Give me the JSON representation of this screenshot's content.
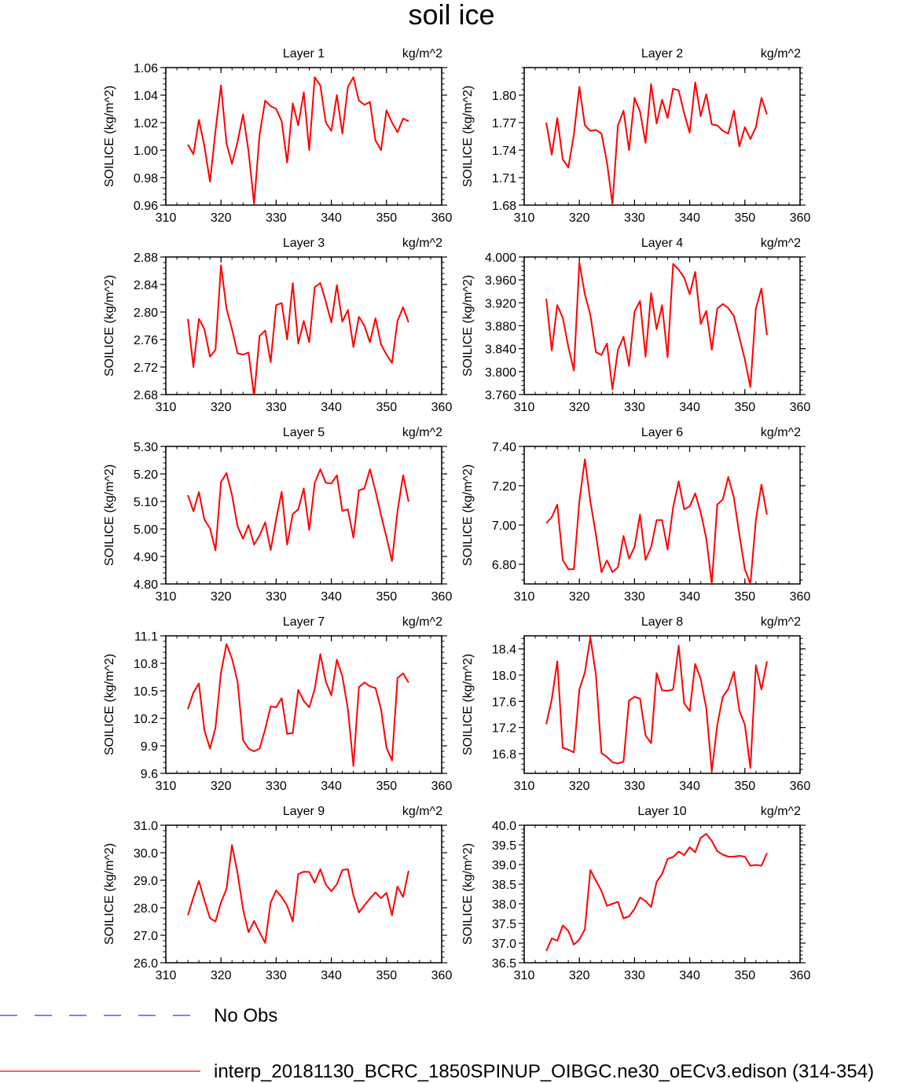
{
  "title": "soil ice",
  "legend": {
    "obs_label": "No Obs",
    "obs_color": "#3333ff",
    "model_label": "interp_20181130_BCRC_1850SPINUP_OIBGC.ne30_oECv3.edison (314-354)",
    "model_color": "#ff0000"
  },
  "chart_data": [
    {
      "type": "line",
      "title": "Layer 1",
      "units": "kg/m^2",
      "ylabel": "SOILICE  (kg/m^2)",
      "xlim": [
        310,
        360
      ],
      "xticks": [
        310,
        320,
        330,
        340,
        350,
        360
      ],
      "ylim": [
        0.96,
        1.06
      ],
      "yticks": [
        "0.96",
        "0.98",
        "1.00",
        "1.02",
        "1.04",
        "1.06"
      ],
      "x": [
        314,
        315,
        316,
        317,
        318,
        319,
        320,
        321,
        322,
        323,
        324,
        325,
        326,
        327,
        328,
        329,
        330,
        331,
        332,
        333,
        334,
        335,
        336,
        337,
        338,
        339,
        340,
        341,
        342,
        343,
        344,
        345,
        346,
        347,
        348,
        349,
        350,
        351,
        352,
        353,
        354
      ],
      "values": [
        1.004,
        0.997,
        1.022,
        1.003,
        0.977,
        1.014,
        1.047,
        1.005,
        0.99,
        1.006,
        1.026,
        0.999,
        0.961,
        1.011,
        1.036,
        1.032,
        1.03,
        1.021,
        0.991,
        1.034,
        1.018,
        1.042,
        1.0,
        1.053,
        1.047,
        1.02,
        1.014,
        1.04,
        1.012,
        1.046,
        1.053,
        1.036,
        1.033,
        1.035,
        1.007,
        1.0,
        1.029,
        1.02,
        1.013,
        1.023,
        1.021
      ]
    },
    {
      "type": "line",
      "title": "Layer 2",
      "units": "kg/m^2",
      "ylabel": "SOILICE  (kg/m^2)",
      "xlim": [
        310,
        360
      ],
      "xticks": [
        310,
        320,
        330,
        340,
        350,
        360
      ],
      "ylim": [
        1.68,
        1.83
      ],
      "yticks": [
        "1.68",
        "1.71",
        "1.74",
        "1.77",
        "1.80"
      ],
      "x": [
        314,
        315,
        316,
        317,
        318,
        319,
        320,
        321,
        322,
        323,
        324,
        325,
        326,
        327,
        328,
        329,
        330,
        331,
        332,
        333,
        334,
        335,
        336,
        337,
        338,
        339,
        340,
        341,
        342,
        343,
        344,
        345,
        346,
        347,
        348,
        349,
        350,
        351,
        352,
        353,
        354
      ],
      "values": [
        1.77,
        1.735,
        1.775,
        1.73,
        1.721,
        1.757,
        1.809,
        1.767,
        1.761,
        1.762,
        1.758,
        1.727,
        1.681,
        1.767,
        1.783,
        1.74,
        1.797,
        1.782,
        1.748,
        1.812,
        1.769,
        1.795,
        1.775,
        1.807,
        1.805,
        1.78,
        1.759,
        1.814,
        1.777,
        1.801,
        1.768,
        1.767,
        1.761,
        1.758,
        1.783,
        1.744,
        1.765,
        1.752,
        1.765,
        1.797,
        1.779
      ]
    },
    {
      "type": "line",
      "title": "Layer 3",
      "units": "kg/m^2",
      "ylabel": "SOILICE  (kg/m^2)",
      "xlim": [
        310,
        360
      ],
      "xticks": [
        310,
        320,
        330,
        340,
        350,
        360
      ],
      "ylim": [
        2.68,
        2.88
      ],
      "yticks": [
        "2.68",
        "2.72",
        "2.76",
        "2.80",
        "2.84",
        "2.88"
      ],
      "x": [
        314,
        315,
        316,
        317,
        318,
        319,
        320,
        321,
        322,
        323,
        324,
        325,
        326,
        327,
        328,
        329,
        330,
        331,
        332,
        333,
        334,
        335,
        336,
        337,
        338,
        339,
        340,
        341,
        342,
        343,
        344,
        345,
        346,
        347,
        348,
        349,
        350,
        351,
        352,
        353,
        354
      ],
      "values": [
        2.79,
        2.72,
        2.79,
        2.775,
        2.735,
        2.745,
        2.868,
        2.805,
        2.775,
        2.74,
        2.738,
        2.741,
        2.677,
        2.765,
        2.773,
        2.727,
        2.81,
        2.813,
        2.76,
        2.842,
        2.754,
        2.787,
        2.756,
        2.836,
        2.842,
        2.815,
        2.785,
        2.839,
        2.786,
        2.803,
        2.749,
        2.793,
        2.78,
        2.756,
        2.791,
        2.753,
        2.738,
        2.726,
        2.787,
        2.807,
        2.785
      ]
    },
    {
      "type": "line",
      "title": "Layer 4",
      "units": "kg/m^2",
      "ylabel": "SOILICE  (kg/m^2)",
      "xlim": [
        310,
        360
      ],
      "xticks": [
        310,
        320,
        330,
        340,
        350,
        360
      ],
      "ylim": [
        3.76,
        4.0
      ],
      "yticks": [
        "3.760",
        "3.800",
        "3.840",
        "3.880",
        "3.920",
        "3.960",
        "4.000"
      ],
      "x": [
        314,
        315,
        316,
        317,
        318,
        319,
        320,
        321,
        322,
        323,
        324,
        325,
        326,
        327,
        328,
        329,
        330,
        331,
        332,
        333,
        334,
        335,
        336,
        337,
        338,
        339,
        340,
        341,
        342,
        343,
        344,
        345,
        346,
        347,
        348,
        349,
        350,
        351,
        352,
        353,
        354
      ],
      "values": [
        3.927,
        3.837,
        3.916,
        3.894,
        3.843,
        3.802,
        3.99,
        3.935,
        3.899,
        3.834,
        3.829,
        3.849,
        3.769,
        3.838,
        3.861,
        3.81,
        3.905,
        3.923,
        3.826,
        3.937,
        3.874,
        3.916,
        3.825,
        3.988,
        3.978,
        3.964,
        3.935,
        3.974,
        3.883,
        3.906,
        3.838,
        3.91,
        3.918,
        3.911,
        3.897,
        3.86,
        3.821,
        3.773,
        3.91,
        3.945,
        3.864
      ]
    },
    {
      "type": "line",
      "title": "Layer 5",
      "units": "kg/m^2",
      "ylabel": "SOILICE  (kg/m^2)",
      "xlim": [
        310,
        360
      ],
      "xticks": [
        310,
        320,
        330,
        340,
        350,
        360
      ],
      "ylim": [
        4.8,
        5.3
      ],
      "yticks": [
        "4.80",
        "4.90",
        "5.00",
        "5.10",
        "5.20",
        "5.30"
      ],
      "x": [
        314,
        315,
        316,
        317,
        318,
        319,
        320,
        321,
        322,
        323,
        324,
        325,
        326,
        327,
        328,
        329,
        330,
        331,
        332,
        333,
        334,
        335,
        336,
        337,
        338,
        339,
        340,
        341,
        342,
        343,
        344,
        345,
        346,
        347,
        348,
        349,
        350,
        351,
        352,
        353,
        354
      ],
      "values": [
        5.123,
        5.064,
        5.134,
        5.034,
        5.002,
        4.922,
        5.17,
        5.203,
        5.123,
        5.009,
        4.964,
        5.014,
        4.943,
        4.976,
        5.024,
        4.923,
        5.034,
        5.135,
        4.943,
        5.054,
        5.071,
        5.147,
        4.996,
        5.168,
        5.217,
        5.168,
        5.165,
        5.195,
        5.065,
        5.071,
        4.968,
        5.14,
        5.147,
        5.217,
        5.138,
        5.051,
        4.969,
        4.883,
        5.064,
        5.195,
        5.099
      ]
    },
    {
      "type": "line",
      "title": "Layer 6",
      "units": "kg/m^2",
      "ylabel": "SOILICE  (kg/m^2)",
      "xlim": [
        310,
        360
      ],
      "xticks": [
        310,
        320,
        330,
        340,
        350,
        360
      ],
      "ylim": [
        6.7,
        7.4
      ],
      "yticks": [
        "6.80",
        "7.00",
        "7.20",
        "7.40"
      ],
      "x": [
        314,
        315,
        316,
        317,
        318,
        319,
        320,
        321,
        322,
        323,
        324,
        325,
        326,
        327,
        328,
        329,
        330,
        331,
        332,
        333,
        334,
        335,
        336,
        337,
        338,
        339,
        340,
        341,
        342,
        343,
        344,
        345,
        346,
        347,
        348,
        349,
        350,
        351,
        352,
        353,
        354
      ],
      "values": [
        7.01,
        7.04,
        7.104,
        6.822,
        6.775,
        6.775,
        7.12,
        7.334,
        7.12,
        6.951,
        6.76,
        6.82,
        6.76,
        6.785,
        6.944,
        6.829,
        6.888,
        7.053,
        6.822,
        6.888,
        7.025,
        7.025,
        6.875,
        7.09,
        7.222,
        7.08,
        7.095,
        7.161,
        7.065,
        6.932,
        6.7,
        7.104,
        7.13,
        7.245,
        7.14,
        6.951,
        6.775,
        6.7,
        7.025,
        7.206,
        7.053
      ]
    },
    {
      "type": "line",
      "title": "Layer 7",
      "units": "kg/m^2",
      "ylabel": "SOILICE  (kg/m^2)",
      "xlim": [
        310,
        360
      ],
      "xticks": [
        310,
        320,
        330,
        340,
        350,
        360
      ],
      "ylim": [
        9.6,
        11.1
      ],
      "yticks": [
        "9.6",
        "9.9",
        "10.2",
        "10.5",
        "10.8",
        "11.1"
      ],
      "x": [
        314,
        315,
        316,
        317,
        318,
        319,
        320,
        321,
        322,
        323,
        324,
        325,
        326,
        327,
        328,
        329,
        330,
        331,
        332,
        333,
        334,
        335,
        336,
        337,
        338,
        339,
        340,
        341,
        342,
        343,
        344,
        345,
        346,
        347,
        348,
        349,
        350,
        351,
        352,
        353,
        354
      ],
      "values": [
        10.3,
        10.48,
        10.58,
        10.07,
        9.87,
        10.1,
        10.7,
        11.01,
        10.85,
        10.6,
        9.96,
        9.87,
        9.84,
        9.87,
        10.08,
        10.33,
        10.32,
        10.42,
        10.03,
        10.04,
        10.51,
        10.39,
        10.32,
        10.52,
        10.9,
        10.6,
        10.45,
        10.84,
        10.66,
        10.3,
        9.68,
        10.54,
        10.59,
        10.55,
        10.53,
        10.3,
        9.88,
        9.74,
        10.64,
        10.69,
        10.59
      ]
    },
    {
      "type": "line",
      "title": "Layer 8",
      "units": "kg/m^2",
      "ylabel": "SOILICE  (kg/m^2)",
      "xlim": [
        310,
        360
      ],
      "xticks": [
        310,
        320,
        330,
        340,
        350,
        360
      ],
      "ylim": [
        16.5,
        18.6
      ],
      "yticks": [
        "16.8",
        "17.2",
        "17.6",
        "18.0",
        "18.4"
      ],
      "x": [
        314,
        315,
        316,
        317,
        318,
        319,
        320,
        321,
        322,
        323,
        324,
        325,
        326,
        327,
        328,
        329,
        330,
        331,
        332,
        333,
        334,
        335,
        336,
        337,
        338,
        339,
        340,
        341,
        342,
        343,
        344,
        345,
        346,
        347,
        348,
        349,
        350,
        351,
        352,
        353,
        354
      ],
      "values": [
        17.25,
        17.63,
        18.21,
        16.89,
        16.86,
        16.82,
        17.78,
        18.04,
        18.58,
        18.0,
        16.81,
        16.75,
        16.67,
        16.65,
        16.68,
        17.61,
        17.67,
        17.64,
        17.08,
        16.96,
        18.03,
        17.77,
        17.76,
        17.78,
        18.45,
        17.57,
        17.45,
        18.17,
        17.94,
        17.49,
        16.53,
        17.24,
        17.67,
        17.79,
        18.05,
        17.46,
        17.24,
        16.58,
        18.15,
        17.78,
        18.21
      ]
    },
    {
      "type": "line",
      "title": "Layer 9",
      "units": "kg/m^2",
      "ylabel": "SOILICE  (kg/m^2)",
      "xlim": [
        310,
        360
      ],
      "xticks": [
        310,
        320,
        330,
        340,
        350,
        360
      ],
      "ylim": [
        26.0,
        31.0
      ],
      "yticks": [
        "26.0",
        "27.0",
        "28.0",
        "29.0",
        "30.0",
        "31.0"
      ],
      "x": [
        314,
        315,
        316,
        317,
        318,
        319,
        320,
        321,
        322,
        323,
        324,
        325,
        326,
        327,
        328,
        329,
        330,
        331,
        332,
        333,
        334,
        335,
        336,
        337,
        338,
        339,
        340,
        341,
        342,
        343,
        344,
        345,
        346,
        347,
        348,
        349,
        350,
        351,
        352,
        353,
        354
      ],
      "values": [
        27.73,
        28.38,
        28.97,
        28.27,
        27.62,
        27.5,
        28.19,
        28.68,
        30.28,
        29.25,
        27.94,
        27.11,
        27.52,
        27.11,
        26.72,
        28.19,
        28.63,
        28.39,
        28.07,
        27.5,
        29.22,
        29.31,
        29.3,
        28.91,
        29.4,
        28.84,
        28.6,
        28.85,
        29.37,
        29.4,
        28.45,
        27.83,
        28.09,
        28.33,
        28.56,
        28.35,
        28.54,
        27.73,
        28.77,
        28.39,
        29.34
      ]
    },
    {
      "type": "line",
      "title": "Layer 10",
      "units": "kg/m^2",
      "ylabel": "SOILICE  (kg/m^2)",
      "xlim": [
        310,
        360
      ],
      "xticks": [
        310,
        320,
        330,
        340,
        350,
        360
      ],
      "ylim": [
        36.5,
        40.0
      ],
      "yticks": [
        "36.5",
        "37.0",
        "37.5",
        "38.0",
        "38.5",
        "39.0",
        "39.5",
        "40.0"
      ],
      "x": [
        314,
        315,
        316,
        317,
        318,
        319,
        320,
        321,
        322,
        323,
        324,
        325,
        326,
        327,
        328,
        329,
        330,
        331,
        332,
        333,
        334,
        335,
        336,
        337,
        338,
        339,
        340,
        341,
        342,
        343,
        344,
        345,
        346,
        347,
        348,
        349,
        350,
        351,
        352,
        353,
        354
      ],
      "values": [
        36.8,
        37.12,
        37.06,
        37.45,
        37.31,
        36.96,
        37.09,
        37.35,
        38.86,
        38.59,
        38.33,
        37.95,
        38.0,
        38.05,
        37.63,
        37.68,
        37.87,
        38.16,
        38.07,
        37.92,
        38.56,
        38.76,
        39.14,
        39.19,
        39.33,
        39.24,
        39.44,
        39.31,
        39.68,
        39.78,
        39.6,
        39.34,
        39.25,
        39.2,
        39.2,
        39.22,
        39.2,
        38.97,
        38.99,
        38.97,
        39.29
      ]
    }
  ]
}
